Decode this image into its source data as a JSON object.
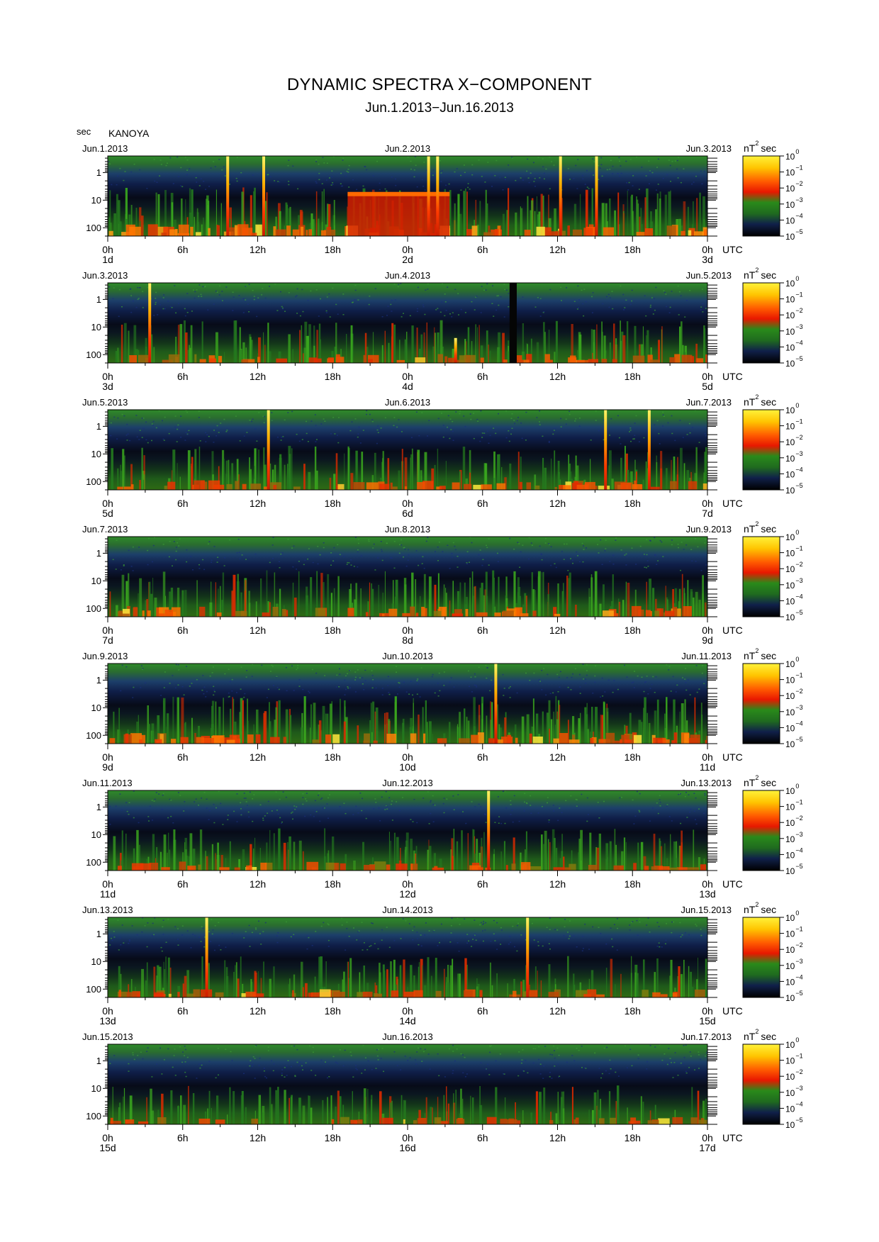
{
  "header": {
    "title": "DYNAMIC SPECTRA X−COMPONENT",
    "subtitle": "Jun.1.2013−Jun.16.2013",
    "unit_label": "sec",
    "station": "KANOYA"
  },
  "chart_data": {
    "type": "heatmap",
    "title": "DYNAMIC SPECTRA X−COMPONENT",
    "subtitle": "Jun.1.2013−Jun.16.2013",
    "ylabel": "sec",
    "yscale": "log",
    "ylim": [
      0.25,
      200
    ],
    "y_ticks": [
      {
        "value": 1,
        "label": "1"
      },
      {
        "value": 10,
        "label": "10"
      },
      {
        "value": 100,
        "label": "100"
      }
    ],
    "x_ticks": [
      "0h",
      "6h",
      "12h",
      "18h",
      "0h",
      "6h",
      "12h",
      "18h",
      "0h"
    ],
    "x_unit": "UTC",
    "colorbar": {
      "label": "nT",
      "label_exp": "2",
      "label_suffix": "sec",
      "scale": "log",
      "ticks": [
        {
          "base": "10",
          "exp": "0",
          "value": 1
        },
        {
          "base": "10",
          "exp": "−1",
          "value": 0.1
        },
        {
          "base": "10",
          "exp": "−2",
          "value": 0.01
        },
        {
          "base": "10",
          "exp": "−3",
          "value": 0.001
        },
        {
          "base": "10",
          "exp": "−4",
          "value": 0.0001
        },
        {
          "base": "10",
          "exp": "−5",
          "value": 1e-05
        }
      ],
      "colors": [
        "#000000",
        "#0a1a3c",
        "#1e4a9a",
        "#1f7a1f",
        "#3cbf1e",
        "#ff2a00",
        "#ffd800",
        "#fff23a"
      ]
    },
    "panels": [
      {
        "date_left": "Jun.1.2013",
        "date_mid": "Jun.2.2013",
        "date_right": "Jun.3.2013",
        "day_left": "1d",
        "day_mid": "2d",
        "day_right": "3d",
        "spikes": [
          {
            "t": 0.2,
            "top": 0.25
          },
          {
            "t": 0.26,
            "top": 0.25
          },
          {
            "t": 0.535,
            "top": 0.25
          },
          {
            "t": 0.55,
            "top": 0.25
          },
          {
            "t": 0.755,
            "top": 0.25
          },
          {
            "t": 0.815,
            "top": 0.25
          }
        ],
        "bursts": [
          {
            "t0": 0.4,
            "t1": 0.57,
            "period": 6
          }
        ],
        "gaps": [],
        "activity": 0.8
      },
      {
        "date_left": "Jun.3.2013",
        "date_mid": "Jun.4.2013",
        "date_right": "Jun.5.2013",
        "day_left": "3d",
        "day_mid": "4d",
        "day_right": "5d",
        "spikes": [
          {
            "t": 0.07,
            "top": 0.25
          },
          {
            "t": 0.58,
            "top": 25
          }
        ],
        "bursts": [],
        "gaps": [
          {
            "t0": 0.67,
            "t1": 0.682
          }
        ],
        "activity": 0.55
      },
      {
        "date_left": "Jun.5.2013",
        "date_mid": "Jun.6.2013",
        "date_right": "Jun.7.2013",
        "day_left": "5d",
        "day_mid": "6d",
        "day_right": "7d",
        "spikes": [
          {
            "t": 0.268,
            "top": 0.25
          },
          {
            "t": 0.83,
            "top": 0.25
          },
          {
            "t": 0.903,
            "top": 0.25
          }
        ],
        "bursts": [],
        "gaps": [],
        "activity": 0.6
      },
      {
        "date_left": "Jun.7.2013",
        "date_mid": "Jun.8.2013",
        "date_right": "Jun.9.2013",
        "day_left": "7d",
        "day_mid": "8d",
        "day_right": "9d",
        "spikes": [],
        "bursts": [],
        "gaps": [],
        "activity": 0.7
      },
      {
        "date_left": "Jun.9.2013",
        "date_mid": "Jun.10.2013",
        "date_right": "Jun.11.2013",
        "day_left": "9d",
        "day_mid": "10d",
        "day_right": "11d",
        "spikes": [
          {
            "t": 0.647,
            "top": 0.25
          }
        ],
        "bursts": [],
        "gaps": [],
        "activity": 0.75
      },
      {
        "date_left": "Jun.11.2013",
        "date_mid": "Jun.12.2013",
        "date_right": "Jun.13.2013",
        "day_left": "11d",
        "day_mid": "12d",
        "day_right": "13d",
        "spikes": [
          {
            "t": 0.635,
            "top": 0.25
          }
        ],
        "bursts": [],
        "gaps": [],
        "activity": 0.55
      },
      {
        "date_left": "Jun.13.2013",
        "date_mid": "Jun.14.2013",
        "date_right": "Jun.15.2013",
        "day_left": "13d",
        "day_mid": "14d",
        "day_right": "15d",
        "spikes": [
          {
            "t": 0.165,
            "top": 0.25
          },
          {
            "t": 0.7,
            "top": 0.25
          }
        ],
        "bursts": [],
        "gaps": [],
        "activity": 0.5
      },
      {
        "date_left": "Jun.15.2013",
        "date_mid": "Jun.16.2013",
        "date_right": "Jun.17.2013",
        "day_left": "15d",
        "day_mid": "16d",
        "day_right": "17d",
        "spikes": [],
        "bursts": [],
        "gaps": [],
        "activity": 0.4
      }
    ]
  }
}
